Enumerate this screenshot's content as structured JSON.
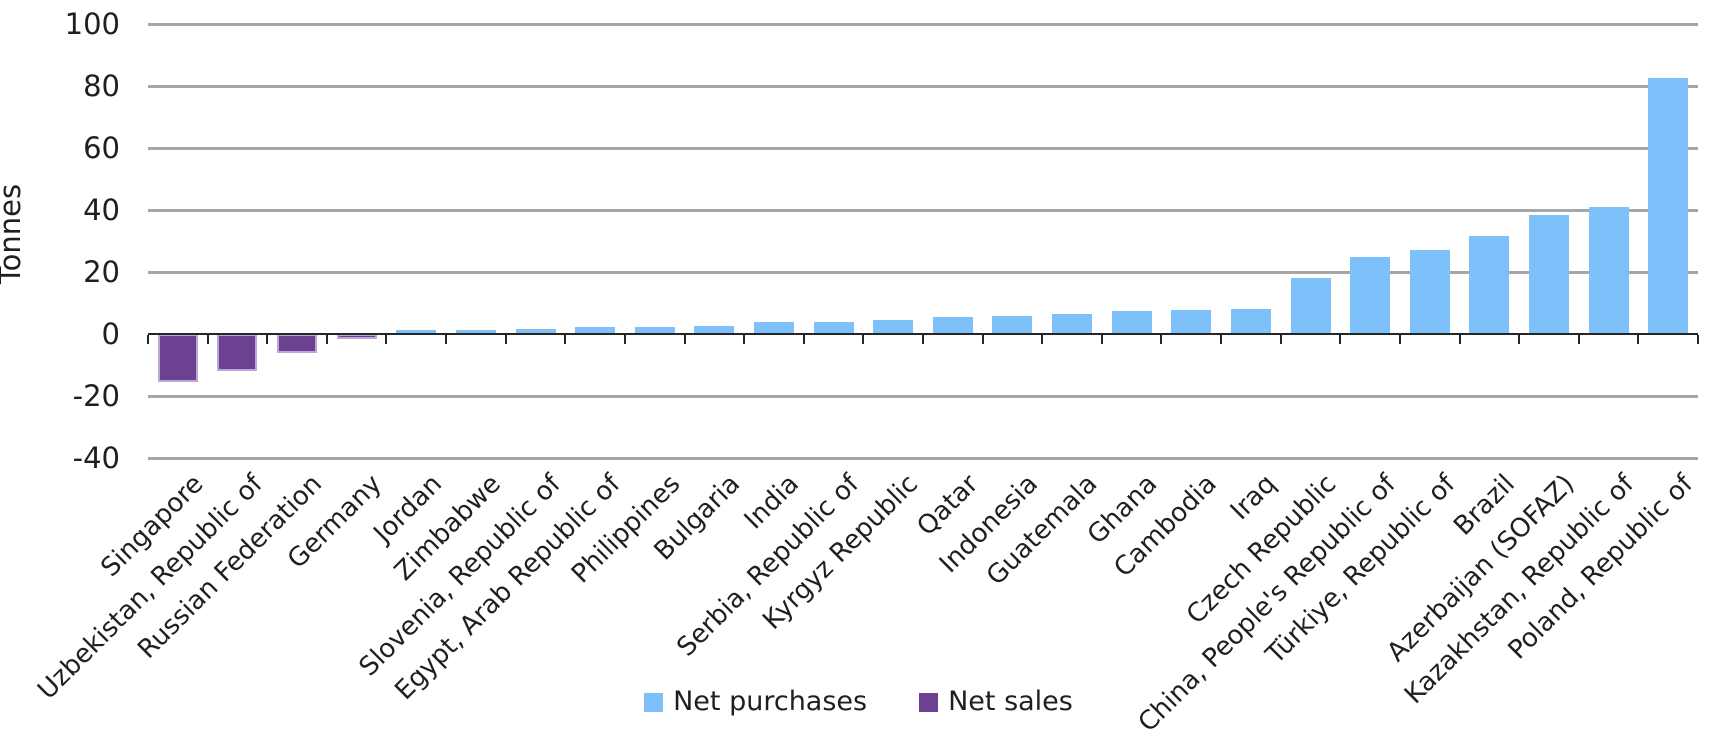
{
  "chart_data": {
    "type": "bar",
    "title": "",
    "ylabel": "Tonnes",
    "xlabel": "",
    "ylim": [
      -40,
      100
    ],
    "ytick_step": 20,
    "yticks": [
      100,
      80,
      60,
      40,
      20,
      0,
      -20,
      -40
    ],
    "grid": true,
    "legend_position": "bottom-center",
    "legend": [
      {
        "label": "Net purchases",
        "color": "#7EC1FA"
      },
      {
        "label": "Net sales",
        "color": "#6D4192"
      }
    ],
    "categories": [
      "Singapore",
      "Uzbekistan, Republic of",
      "Russian Federation",
      "Germany",
      "Jordan",
      "Zimbabwe",
      "Slovenia, Republic of",
      "Egypt, Arab Republic of",
      "Philippines",
      "Bulgaria",
      "India",
      "Serbia, Republic of",
      "Kyrgyz Republic",
      "Qatar",
      "Indonesia",
      "Guatemala",
      "Ghana",
      "Cambodia",
      "Iraq",
      "Czech Republic",
      "China, People's Republic of",
      "Türkiye, Republic of",
      "Brazil",
      "Azerbaijan (SOFAZ)",
      "Kazakhstan, Republic of",
      "Poland, Republic of"
    ],
    "values": [
      -15.5,
      -12,
      -6,
      -1.5,
      1.3,
      1.4,
      1.7,
      2.3,
      2.4,
      2.5,
      3.8,
      4,
      4.4,
      5.4,
      5.7,
      6.3,
      7.4,
      7.7,
      8.2,
      18,
      24.8,
      27,
      31.5,
      38.5,
      41,
      82.5
    ]
  }
}
